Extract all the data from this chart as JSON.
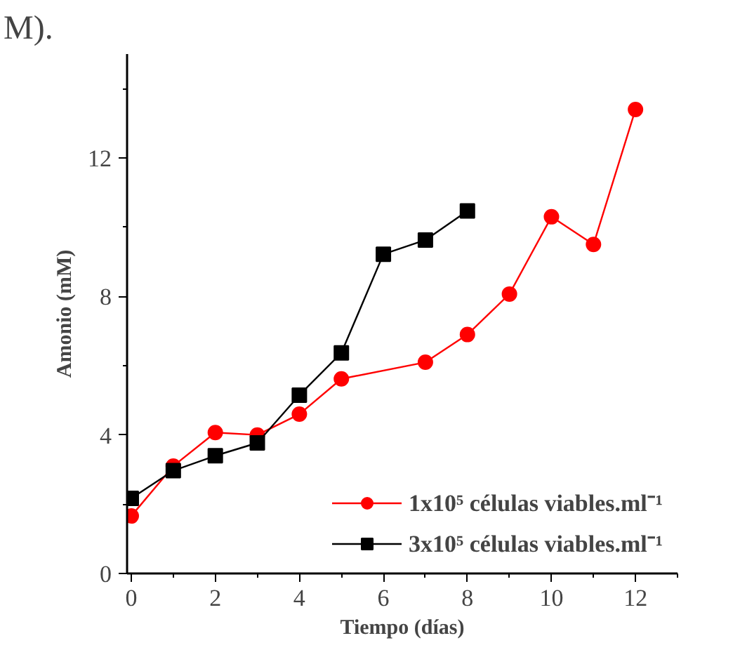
{
  "chart_data": {
    "type": "line",
    "xlabel": "Tiempo (días)",
    "ylabel": "Amonio (mM)",
    "annotations": [
      "M)."
    ],
    "xlim": [
      -0.1,
      13
    ],
    "xticks": [
      0,
      2,
      4,
      6,
      8,
      10,
      12
    ],
    "ylim": [
      0,
      15
    ],
    "yticks": [
      0,
      4,
      8,
      12
    ],
    "grid": false,
    "legend": "bottom right",
    "line_style": "solid",
    "series": [
      {
        "name": "1x10⁵ células viables.ml⁻¹",
        "color": "#ff0000",
        "marker": "circle",
        "x": [
          0,
          1,
          2,
          3,
          4,
          5,
          7,
          8,
          9,
          10,
          11,
          12
        ],
        "values": [
          1.66,
          3.1,
          4.07,
          4.0,
          4.6,
          5.62,
          6.1,
          6.9,
          8.07,
          10.3,
          9.5,
          13.4
        ]
      },
      {
        "name": "3x10⁵ células viables.ml⁻¹",
        "color": "#000000",
        "marker": "square",
        "x": [
          0,
          1,
          2,
          3,
          4,
          5,
          6,
          7,
          8
        ],
        "values": [
          2.17,
          2.97,
          3.4,
          3.77,
          5.15,
          6.37,
          9.22,
          9.63,
          10.47
        ]
      }
    ]
  }
}
